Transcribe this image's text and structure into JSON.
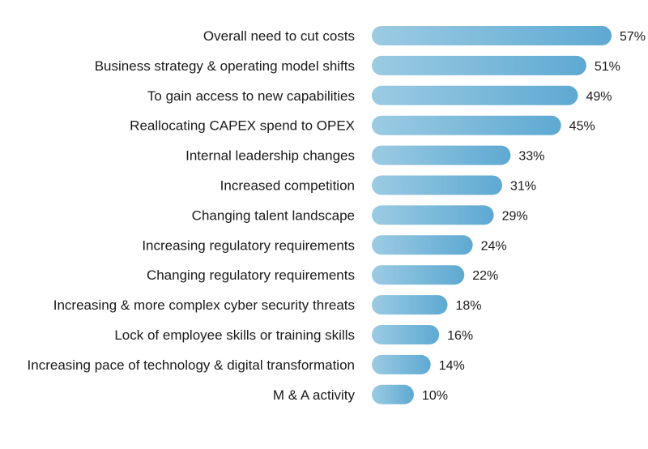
{
  "chart_data": {
    "type": "bar",
    "orientation": "horizontal",
    "categories": [
      "Overall need to cut costs",
      "Business strategy & operating model shifts",
      "To gain access to new capabilities",
      "Reallocating CAPEX spend to OPEX",
      "Internal leadership changes",
      "Increased competition",
      "Changing talent landscape",
      "Increasing regulatory requirements",
      "Changing regulatory requirements",
      "Increasing & more complex cyber security threats",
      "Lock of employee skills or training skills",
      "Increasing pace of technology & digital transformation",
      "M & A activity"
    ],
    "values": [
      57,
      51,
      49,
      45,
      33,
      31,
      29,
      24,
      22,
      18,
      16,
      14,
      10
    ],
    "value_labels": [
      "57%",
      "51%",
      "49%",
      "45%",
      "33%",
      "31%",
      "29%",
      "24%",
      "22%",
      "18%",
      "16%",
      "14%",
      "10%"
    ],
    "unit": "%",
    "xlim": [
      0,
      57
    ],
    "grid": false,
    "legend": "none",
    "colors": {
      "bar_start": "#9ccbe3",
      "bar_end": "#5ea9d2",
      "text": "#1a1a1a"
    }
  }
}
